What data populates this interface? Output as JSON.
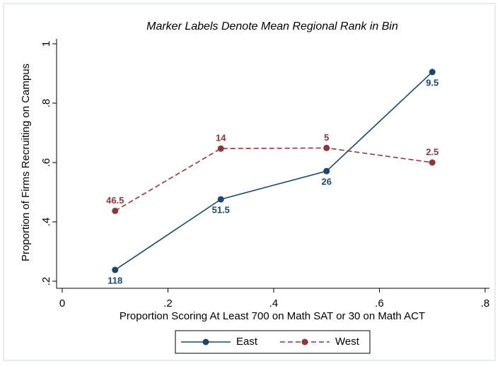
{
  "chart_data": {
    "type": "line",
    "title": "Marker Labels Denote Mean Regional Rank in Bin",
    "xlabel": "Proportion Scoring At Least 700 on Math SAT or 30 on Math ACT",
    "ylabel": "Proportion of Firms Recruiting on Campus",
    "xlim": [
      0,
      0.8
    ],
    "xticks": [
      0,
      {
        "value": 0.2,
        "label": ".2"
      },
      {
        "value": 0.4,
        "label": ".4"
      },
      {
        "value": 0.6,
        "label": ".6"
      },
      {
        "value": 0.8,
        "label": ".8"
      }
    ],
    "ylim": [
      0.2,
      1
    ],
    "yticks": [
      {
        "value": 0.2,
        "label": ".2"
      },
      {
        "value": 0.4,
        "label": ".4"
      },
      {
        "value": 0.6,
        "label": ".6"
      },
      {
        "value": 0.8,
        "label": ".8"
      },
      1
    ],
    "legend": "bottom",
    "series": [
      {
        "name": "East",
        "color": "#1a476f",
        "dashed": false,
        "label_position": "below",
        "x": [
          0.1,
          0.3,
          0.5,
          0.7
        ],
        "values": [
          0.238,
          0.476,
          0.571,
          0.905
        ],
        "marker_labels": [
          118,
          51.5,
          26,
          9.5
        ]
      },
      {
        "name": "West",
        "color": "#90353b",
        "dashed": true,
        "label_position": "above",
        "x": [
          0.1,
          0.3,
          0.5,
          0.7
        ],
        "values": [
          0.437,
          0.647,
          0.649,
          0.6
        ],
        "marker_labels": [
          46.5,
          14,
          5,
          2.5
        ]
      }
    ]
  }
}
